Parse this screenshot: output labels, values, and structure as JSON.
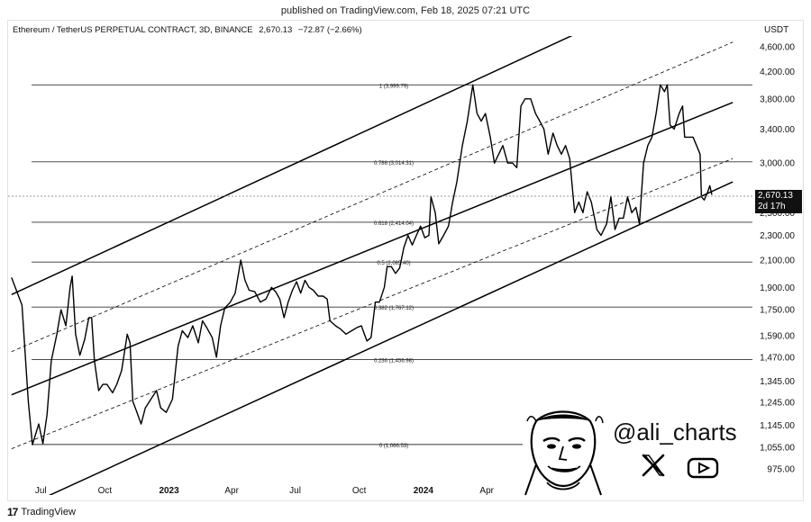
{
  "header": {
    "published": "published on TradingView.com, Feb 18, 2025 07:21 UTC"
  },
  "symbol": {
    "name": "Ethereum / TetherUS PERPETUAL CONTRACT, 3D, BINANCE",
    "last": "2,670.13",
    "change": "−72.87 (−2.66%)"
  },
  "currency": "USDT",
  "price_tag": {
    "price": "2,670.13",
    "countdown": "2d 17h"
  },
  "branding": {
    "handle": "@ali_charts",
    "footer": "TradingView",
    "logo_text": "17"
  },
  "icons": [
    "x-logo-icon",
    "youtube-icon",
    "avatar-illustration",
    "tradingview-logo-icon"
  ],
  "chart_data": {
    "type": "line",
    "scale": "log",
    "ylim": [
      940,
      4700
    ],
    "x_tick_labels": [
      "Jul",
      "Oct",
      "2023",
      "Apr",
      "Jul",
      "Oct",
      "2024",
      "Apr"
    ],
    "x_tick_dates": [
      "2022-07-01",
      "2022-10-01",
      "2023-01-01",
      "2023-04-01",
      "2023-07-01",
      "2023-10-01",
      "2024-01-01",
      "2024-04-01"
    ],
    "y_ticks": [
      975,
      1055,
      1145,
      1245,
      1345,
      1470,
      1590,
      1750,
      1900,
      2100,
      2300,
      2500,
      3000,
      3400,
      3800,
      4200,
      4600
    ],
    "y_tick_labels": [
      "975.00",
      "1,055.00",
      "1,145.00",
      "1,245.00",
      "1,345.00",
      "1,470.00",
      "1,590.00",
      "1,750.00",
      "1,900.00",
      "2,100.00",
      "2,300.00",
      "2,500.00",
      "3,000.00",
      "3,400.00",
      "3,800.00",
      "4,200.00",
      "4,600.00"
    ],
    "fib_levels": [
      {
        "level": "1",
        "price": 3999.79,
        "label": "1 (3,999.79)"
      },
      {
        "level": "0.786",
        "price": 3014.31,
        "label": "0.786 (3,014.31)"
      },
      {
        "level": "0.618",
        "price": 2414.04,
        "label": "0.618 (2,414.04)"
      },
      {
        "level": "0.5",
        "price": 2085.4,
        "label": "0.5 (2,085.40)"
      },
      {
        "level": "0.382",
        "price": 1767.12,
        "label": "0.382 (1,767.12)"
      },
      {
        "level": "0.236",
        "price": 1456.98,
        "label": "0.236 (1,456.98)"
      },
      {
        "level": "0",
        "price": 1066.53,
        "label": "0 (1,066.53)"
      }
    ],
    "series": [
      {
        "values": [
          [
            "2022-05-20",
            1970
          ],
          [
            "2022-06-04",
            1780
          ],
          [
            "2022-06-13",
            1250
          ],
          [
            "2022-06-19",
            1066
          ],
          [
            "2022-06-28",
            1150
          ],
          [
            "2022-07-04",
            1070
          ],
          [
            "2022-07-10",
            1190
          ],
          [
            "2022-07-16",
            1450
          ],
          [
            "2022-07-24",
            1600
          ],
          [
            "2022-07-30",
            1750
          ],
          [
            "2022-08-06",
            1650
          ],
          [
            "2022-08-12",
            1900
          ],
          [
            "2022-08-15",
            1980
          ],
          [
            "2022-08-20",
            1600
          ],
          [
            "2022-08-26",
            1480
          ],
          [
            "2022-09-02",
            1570
          ],
          [
            "2022-09-08",
            1700
          ],
          [
            "2022-09-12",
            1700
          ],
          [
            "2022-09-16",
            1450
          ],
          [
            "2022-09-22",
            1300
          ],
          [
            "2022-09-28",
            1330
          ],
          [
            "2022-10-04",
            1330
          ],
          [
            "2022-10-12",
            1290
          ],
          [
            "2022-10-18",
            1330
          ],
          [
            "2022-10-25",
            1400
          ],
          [
            "2022-11-02",
            1600
          ],
          [
            "2022-11-06",
            1550
          ],
          [
            "2022-11-10",
            1250
          ],
          [
            "2022-11-16",
            1200
          ],
          [
            "2022-11-22",
            1150
          ],
          [
            "2022-11-28",
            1220
          ],
          [
            "2022-12-06",
            1260
          ],
          [
            "2022-12-14",
            1300
          ],
          [
            "2022-12-20",
            1220
          ],
          [
            "2022-12-28",
            1200
          ],
          [
            "2023-01-06",
            1260
          ],
          [
            "2023-01-14",
            1530
          ],
          [
            "2023-01-20",
            1620
          ],
          [
            "2023-01-28",
            1580
          ],
          [
            "2023-02-04",
            1650
          ],
          [
            "2023-02-12",
            1550
          ],
          [
            "2023-02-18",
            1680
          ],
          [
            "2023-02-24",
            1640
          ],
          [
            "2023-03-04",
            1580
          ],
          [
            "2023-03-10",
            1470
          ],
          [
            "2023-03-16",
            1650
          ],
          [
            "2023-03-22",
            1760
          ],
          [
            "2023-03-30",
            1800
          ],
          [
            "2023-04-06",
            1860
          ],
          [
            "2023-04-14",
            2100
          ],
          [
            "2023-04-20",
            1950
          ],
          [
            "2023-04-26",
            1880
          ],
          [
            "2023-05-04",
            1870
          ],
          [
            "2023-05-12",
            1800
          ],
          [
            "2023-05-20",
            1820
          ],
          [
            "2023-05-28",
            1900
          ],
          [
            "2023-06-03",
            1870
          ],
          [
            "2023-06-09",
            1820
          ],
          [
            "2023-06-15",
            1700
          ],
          [
            "2023-06-21",
            1800
          ],
          [
            "2023-06-27",
            1880
          ],
          [
            "2023-07-03",
            1940
          ],
          [
            "2023-07-09",
            1860
          ],
          [
            "2023-07-15",
            1950
          ],
          [
            "2023-07-21",
            1900
          ],
          [
            "2023-07-27",
            1880
          ],
          [
            "2023-08-03",
            1840
          ],
          [
            "2023-08-10",
            1840
          ],
          [
            "2023-08-16",
            1820
          ],
          [
            "2023-08-20",
            1680
          ],
          [
            "2023-08-28",
            1650
          ],
          [
            "2023-09-04",
            1630
          ],
          [
            "2023-09-12",
            1600
          ],
          [
            "2023-09-20",
            1620
          ],
          [
            "2023-09-28",
            1640
          ],
          [
            "2023-10-04",
            1650
          ],
          [
            "2023-10-12",
            1560
          ],
          [
            "2023-10-18",
            1580
          ],
          [
            "2023-10-24",
            1800
          ],
          [
            "2023-10-30",
            1800
          ],
          [
            "2023-11-06",
            1900
          ],
          [
            "2023-11-10",
            2050
          ],
          [
            "2023-11-16",
            2050
          ],
          [
            "2023-11-22",
            2000
          ],
          [
            "2023-11-28",
            2040
          ],
          [
            "2023-12-04",
            2200
          ],
          [
            "2023-12-10",
            2300
          ],
          [
            "2023-12-16",
            2220
          ],
          [
            "2023-12-22",
            2300
          ],
          [
            "2023-12-28",
            2380
          ],
          [
            "2024-01-03",
            2280
          ],
          [
            "2024-01-09",
            2300
          ],
          [
            "2024-01-12",
            2650
          ],
          [
            "2024-01-18",
            2500
          ],
          [
            "2024-01-23",
            2230
          ],
          [
            "2024-01-30",
            2300
          ],
          [
            "2024-02-06",
            2380
          ],
          [
            "2024-02-12",
            2600
          ],
          [
            "2024-02-18",
            2800
          ],
          [
            "2024-02-26",
            3200
          ],
          [
            "2024-03-04",
            3500
          ],
          [
            "2024-03-12",
            4000
          ],
          [
            "2024-03-18",
            3600
          ],
          [
            "2024-03-24",
            3500
          ],
          [
            "2024-03-30",
            3600
          ],
          [
            "2024-04-06",
            3300
          ],
          [
            "2024-04-12",
            3000
          ],
          [
            "2024-04-18",
            3100
          ],
          [
            "2024-04-24",
            3200
          ],
          [
            "2024-05-01",
            3000
          ],
          [
            "2024-05-08",
            3000
          ],
          [
            "2024-05-14",
            2950
          ],
          [
            "2024-05-20",
            3700
          ],
          [
            "2024-05-26",
            3800
          ],
          [
            "2024-06-03",
            3800
          ],
          [
            "2024-06-10",
            3600
          ],
          [
            "2024-06-16",
            3500
          ],
          [
            "2024-06-22",
            3400
          ],
          [
            "2024-06-28",
            3100
          ],
          [
            "2024-07-05",
            3350
          ],
          [
            "2024-07-11",
            3200
          ],
          [
            "2024-07-17",
            3100
          ],
          [
            "2024-07-23",
            3200
          ],
          [
            "2024-07-29",
            3050
          ],
          [
            "2024-08-05",
            2500
          ],
          [
            "2024-08-11",
            2600
          ],
          [
            "2024-08-17",
            2500
          ],
          [
            "2024-08-23",
            2700
          ],
          [
            "2024-08-29",
            2600
          ],
          [
            "2024-09-06",
            2350
          ],
          [
            "2024-09-12",
            2300
          ],
          [
            "2024-09-20",
            2400
          ],
          [
            "2024-09-26",
            2650
          ],
          [
            "2024-10-02",
            2350
          ],
          [
            "2024-10-08",
            2450
          ],
          [
            "2024-10-14",
            2450
          ],
          [
            "2024-10-20",
            2650
          ],
          [
            "2024-10-26",
            2500
          ],
          [
            "2024-11-01",
            2550
          ],
          [
            "2024-11-06",
            2400
          ],
          [
            "2024-11-12",
            3000
          ],
          [
            "2024-11-18",
            3200
          ],
          [
            "2024-11-24",
            3300
          ],
          [
            "2024-11-30",
            3600
          ],
          [
            "2024-12-06",
            4000
          ],
          [
            "2024-12-12",
            3900
          ],
          [
            "2024-12-16",
            4000
          ],
          [
            "2024-12-20",
            3450
          ],
          [
            "2024-12-26",
            3400
          ],
          [
            "2025-01-02",
            3600
          ],
          [
            "2025-01-07",
            3700
          ],
          [
            "2025-01-10",
            3300
          ],
          [
            "2025-01-16",
            3300
          ],
          [
            "2025-01-22",
            3300
          ],
          [
            "2025-01-27",
            3200
          ],
          [
            "2025-02-01",
            3100
          ],
          [
            "2025-02-03",
            2650
          ],
          [
            "2025-02-07",
            2620
          ],
          [
            "2025-02-12",
            2700
          ],
          [
            "2025-02-15",
            2760
          ],
          [
            "2025-02-18",
            2670
          ]
        ]
      }
    ],
    "channel_lines": [
      {
        "style": "solid",
        "points": [
          [
            "2022-05-20",
            1850
          ],
          [
            "2025-03-20",
            6300
          ]
        ]
      },
      {
        "style": "dashed",
        "points": [
          [
            "2022-05-20",
            1500
          ],
          [
            "2025-03-20",
            4680
          ]
        ]
      },
      {
        "style": "solid",
        "points": [
          [
            "2022-05-20",
            1280
          ],
          [
            "2025-03-20",
            3750
          ]
        ]
      },
      {
        "style": "dashed",
        "points": [
          [
            "2022-05-20",
            1050
          ],
          [
            "2025-03-20",
            3050
          ]
        ]
      },
      {
        "style": "solid",
        "points": [
          [
            "2022-05-20",
            830
          ],
          [
            "2025-03-20",
            2800
          ]
        ]
      }
    ]
  }
}
